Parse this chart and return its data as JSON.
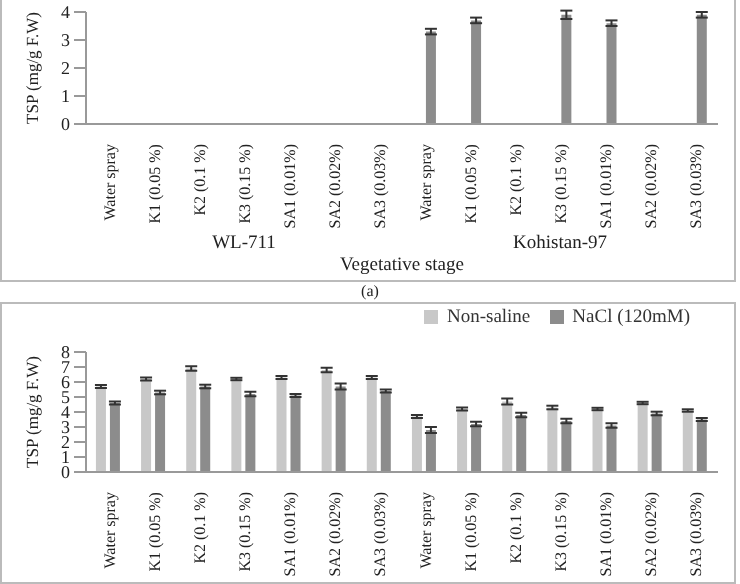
{
  "chart_data": [
    {
      "type": "bar",
      "xlabel": "Vegetative stage",
      "ylabel": "TSP (mg/g F.W)",
      "categories": [
        "Water spray",
        "K1 (0.05 %)",
        "K2 (0.1 %)",
        "K3 (0.15 %)",
        "SA1 (0.01%)",
        "SA2 (0.02%)",
        "SA3 (0.03%)",
        "Water spray",
        "K1 (0.05 %)",
        "K2 (0.1 %)",
        "K3 (0.15 %)",
        "SA1 (0.01%)",
        "SA2 (0.02%)",
        "SA3 (0.03%)"
      ],
      "series": [
        {
          "color": "#c8c8c8",
          "values": [
            null,
            null,
            null,
            null,
            null,
            null,
            null,
            null,
            null,
            null,
            null,
            null,
            null,
            null
          ]
        },
        {
          "color": "#8c8c8c",
          "values": [
            null,
            null,
            null,
            null,
            null,
            null,
            null,
            3.3,
            3.7,
            null,
            3.9,
            3.6,
            null,
            3.9
          ],
          "errors": [
            null,
            null,
            null,
            null,
            null,
            null,
            null,
            0.1,
            0.1,
            null,
            0.15,
            0.1,
            null,
            0.1
          ]
        }
      ],
      "ylim": [
        0,
        4
      ],
      "yticks": [
        0,
        1,
        2,
        3,
        4
      ],
      "grid": false,
      "legend": false,
      "annotations": [
        "WL-711",
        "Kohistan-97",
        "(a)"
      ]
    },
    {
      "type": "bar",
      "ylabel": "TSP (mg/g F.W)",
      "categories": [
        "Water spray",
        "K1 (0.05 %)",
        "K2 (0.1 %)",
        "K3 (0.15 %)",
        "SA1 (0.01%)",
        "SA2 (0.02%)",
        "SA3 (0.03%)",
        "Water spray",
        "K1 (0.05 %)",
        "K2 (0.1 %)",
        "K3 (0.15 %)",
        "SA1 (0.01%)",
        "SA2 (0.02%)",
        "SA3 (0.03%)"
      ],
      "series": [
        {
          "name": "Non-saline",
          "color": "#c8c8c8",
          "values": [
            5.7,
            6.2,
            6.9,
            6.2,
            6.3,
            6.8,
            6.3,
            3.7,
            4.2,
            4.7,
            4.3,
            4.2,
            4.6,
            4.1
          ],
          "errors": [
            0.1,
            0.1,
            0.15,
            0.08,
            0.1,
            0.15,
            0.1,
            0.1,
            0.1,
            0.2,
            0.12,
            0.08,
            0.08,
            0.08
          ]
        },
        {
          "name": "NaCl (120mM)",
          "color": "#8c8c8c",
          "values": [
            4.6,
            5.3,
            5.7,
            5.2,
            5.1,
            5.7,
            5.4,
            2.8,
            3.2,
            3.8,
            3.4,
            3.1,
            3.9,
            3.5
          ],
          "errors": [
            0.1,
            0.12,
            0.12,
            0.15,
            0.1,
            0.2,
            0.1,
            0.2,
            0.15,
            0.15,
            0.15,
            0.15,
            0.12,
            0.1
          ]
        }
      ],
      "ylim": [
        0,
        8
      ],
      "yticks": [
        0,
        1,
        2,
        3,
        4,
        5,
        6,
        7,
        8
      ],
      "grid": false,
      "legend": "top right"
    }
  ]
}
